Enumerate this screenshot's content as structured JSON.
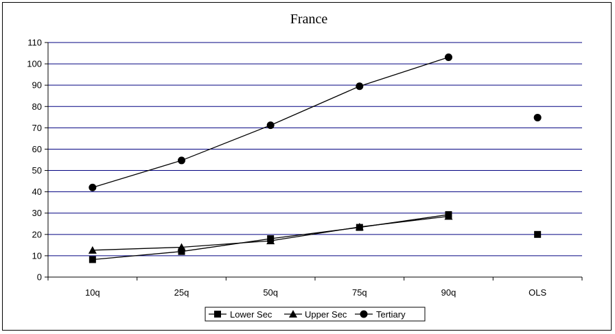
{
  "chart_data": {
    "type": "line",
    "title": "France",
    "xlabel": "",
    "ylabel": "",
    "categories": [
      "10q",
      "25q",
      "50q",
      "75q",
      "90q",
      "OLS"
    ],
    "ylim": [
      0,
      110
    ],
    "yticks": [
      0,
      10,
      20,
      30,
      40,
      50,
      60,
      70,
      80,
      90,
      100,
      110
    ],
    "grid": true,
    "legend_position": "bottom",
    "series": [
      {
        "name": "Lower Sec",
        "marker": "square",
        "values": [
          8.2,
          12,
          18,
          23.3,
          29.3,
          20
        ],
        "connect_points": 5
      },
      {
        "name": "Upper Sec",
        "marker": "triangle",
        "values": [
          12.6,
          14,
          17,
          23.5,
          28.5,
          null
        ],
        "connect_points": 5
      },
      {
        "name": "Tertiary",
        "marker": "circle",
        "values": [
          42,
          54.7,
          71.2,
          89.5,
          103.1,
          74.8
        ],
        "connect_points": 5
      }
    ],
    "colors": {
      "line": "#000000",
      "grid": "#000080",
      "axis": "#000000"
    }
  }
}
